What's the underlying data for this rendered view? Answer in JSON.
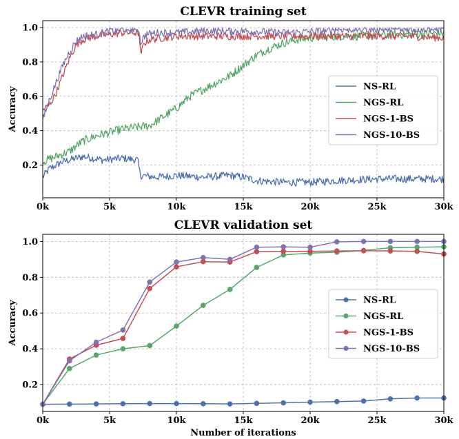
{
  "chart_data": [
    {
      "type": "line",
      "title": "CLEVR training set",
      "xlabel": "",
      "ylabel": "Accuracy",
      "xlim": [
        0,
        30000
      ],
      "ylim": [
        0.01,
        1.04
      ],
      "x_ticks": [
        0,
        5000,
        10000,
        15000,
        20000,
        25000,
        30000
      ],
      "x_tick_labels": [
        "0k",
        "5k",
        "10k",
        "15k",
        "20k",
        "25k",
        "30k"
      ],
      "y_ticks": [
        0.2,
        0.4,
        0.6,
        0.8,
        1.0
      ],
      "y_tick_labels": [
        "0.2",
        "0.4",
        "0.6",
        "0.8",
        "1.0"
      ],
      "grid": true,
      "legend_position": "center-right",
      "noisy": true,
      "series": [
        {
          "name": "NS-RL",
          "color": "#4c72b0",
          "x": [
            0,
            500,
            1500,
            3000,
            4500,
            6000,
            7100,
            7300,
            8500,
            10000,
            12000,
            14000,
            15000,
            16000,
            18000,
            20000,
            22000,
            25000,
            27000,
            30000
          ],
          "y": [
            0.13,
            0.18,
            0.22,
            0.25,
            0.23,
            0.24,
            0.23,
            0.14,
            0.13,
            0.14,
            0.13,
            0.14,
            0.13,
            0.11,
            0.1,
            0.1,
            0.11,
            0.12,
            0.12,
            0.12
          ]
        },
        {
          "name": "NGS-RL",
          "color": "#55a868",
          "x": [
            0,
            1000,
            2000,
            3000,
            4000,
            5000,
            6000,
            7000,
            8000,
            9000,
            10000,
            11000,
            12000,
            13000,
            14000,
            15000,
            16000,
            17000,
            18000,
            19000,
            20000,
            22000,
            24000,
            26000,
            28000,
            30000
          ],
          "y": [
            0.22,
            0.25,
            0.28,
            0.34,
            0.37,
            0.39,
            0.41,
            0.42,
            0.43,
            0.48,
            0.53,
            0.6,
            0.64,
            0.68,
            0.72,
            0.78,
            0.84,
            0.88,
            0.91,
            0.93,
            0.94,
            0.95,
            0.95,
            0.96,
            0.96,
            0.97
          ]
        },
        {
          "name": "NGS-1-BS",
          "color": "#c44e52",
          "x": [
            0,
            500,
            1000,
            1500,
            2000,
            2500,
            3000,
            4000,
            5000,
            6000,
            7000,
            7200,
            7300,
            7600,
            8000,
            9000,
            10000,
            12000,
            15000,
            18000,
            21000,
            24000,
            27000,
            30000
          ],
          "y": [
            0.52,
            0.55,
            0.62,
            0.72,
            0.82,
            0.9,
            0.93,
            0.95,
            0.96,
            0.97,
            0.97,
            0.97,
            0.84,
            0.91,
            0.93,
            0.94,
            0.95,
            0.95,
            0.95,
            0.95,
            0.95,
            0.95,
            0.95,
            0.94
          ]
        },
        {
          "name": "NGS-10-BS",
          "color": "#8172b2",
          "x": [
            0,
            500,
            1000,
            1500,
            2000,
            2500,
            3000,
            4000,
            5000,
            6000,
            7000,
            7200,
            7300,
            7700,
            8500,
            10000,
            12000,
            15000,
            18000,
            21000,
            22000,
            25000,
            30000
          ],
          "y": [
            0.46,
            0.58,
            0.68,
            0.78,
            0.86,
            0.92,
            0.95,
            0.96,
            0.98,
            0.99,
            0.99,
            0.99,
            0.91,
            0.96,
            0.97,
            0.97,
            0.98,
            0.98,
            0.97,
            0.98,
            0.99,
            0.99,
            0.99
          ]
        }
      ]
    },
    {
      "type": "line",
      "title": "CLEVR validation set",
      "xlabel": "Number of iterations",
      "ylabel": "Accuracy",
      "xlim": [
        0,
        30000
      ],
      "ylim": [
        0.05,
        1.04
      ],
      "x_ticks": [
        0,
        5000,
        10000,
        15000,
        20000,
        25000,
        30000
      ],
      "x_tick_labels": [
        "0k",
        "5k",
        "10k",
        "15k",
        "20k",
        "25k",
        "30k"
      ],
      "y_ticks": [
        0.2,
        0.4,
        0.6,
        0.8,
        1.0
      ],
      "y_tick_labels": [
        "0.2",
        "0.4",
        "0.6",
        "0.8",
        "1.0"
      ],
      "grid": true,
      "legend_position": "center-right",
      "noisy": false,
      "markers": true,
      "series": [
        {
          "name": "NS-RL",
          "color": "#4c72b0",
          "x": [
            0,
            2000,
            4000,
            6000,
            8000,
            10000,
            12000,
            14000,
            16000,
            18000,
            20000,
            22000,
            24000,
            26000,
            28000,
            30000
          ],
          "y": [
            0.09,
            0.091,
            0.092,
            0.093,
            0.094,
            0.094,
            0.093,
            0.092,
            0.095,
            0.098,
            0.102,
            0.105,
            0.108,
            0.12,
            0.125,
            0.125
          ]
        },
        {
          "name": "NGS-RL",
          "color": "#55a868",
          "x": [
            0,
            2000,
            4000,
            6000,
            8000,
            10000,
            12000,
            14000,
            16000,
            18000,
            20000,
            22000,
            24000,
            26000,
            28000,
            30000
          ],
          "y": [
            0.09,
            0.29,
            0.365,
            0.4,
            0.418,
            0.527,
            0.643,
            0.732,
            0.855,
            0.925,
            0.935,
            0.94,
            0.95,
            0.965,
            0.968,
            0.97
          ]
        },
        {
          "name": "NGS-1-BS",
          "color": "#c44e52",
          "x": [
            0,
            2000,
            4000,
            6000,
            8000,
            10000,
            12000,
            14000,
            16000,
            18000,
            20000,
            22000,
            24000,
            26000,
            28000,
            30000
          ],
          "y": [
            0.09,
            0.343,
            0.42,
            0.458,
            0.737,
            0.858,
            0.887,
            0.885,
            0.943,
            0.945,
            0.945,
            0.947,
            0.948,
            0.947,
            0.945,
            0.93
          ]
        },
        {
          "name": "NGS-10-BS",
          "color": "#8172b2",
          "x": [
            0,
            2000,
            4000,
            6000,
            8000,
            10000,
            12000,
            14000,
            16000,
            18000,
            20000,
            22000,
            24000,
            26000,
            28000,
            30000
          ],
          "y": [
            0.09,
            0.333,
            0.437,
            0.505,
            0.773,
            0.885,
            0.91,
            0.9,
            0.968,
            0.97,
            0.968,
            0.998,
            1.0,
            1.0,
            1.0,
            1.0
          ]
        }
      ]
    }
  ]
}
